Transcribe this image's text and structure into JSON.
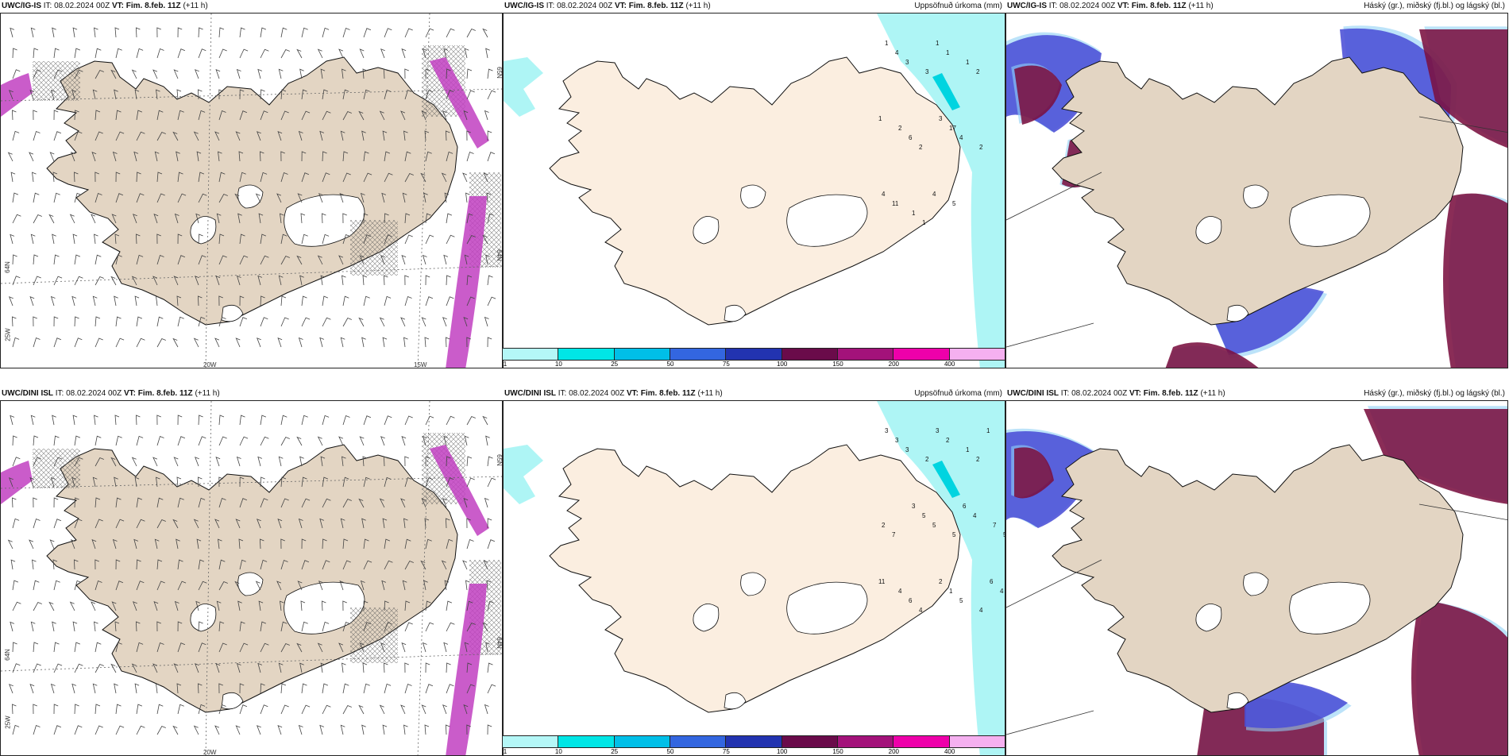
{
  "panels": [
    {
      "model": "UWC/IG-IS",
      "it": "IT: 08.02.2024 00Z",
      "vt_label": "VT:",
      "vt": "Fim. 8.feb. 11Z",
      "lead": "(+11 h)",
      "right_title": ""
    },
    {
      "model": "UWC/IG-IS",
      "it": "IT: 08.02.2024 00Z",
      "vt_label": "VT:",
      "vt": "Fim. 8.feb. 11Z",
      "lead": "(+11 h)",
      "right_title": "Uppsöfnuð úrkoma (mm)"
    },
    {
      "model": "UWC/IG-IS",
      "it": "IT: 08.02.2024 00Z",
      "vt_label": "VT:",
      "vt": "Fim. 8.feb. 11Z",
      "lead": "(+11 h)",
      "right_title": "Háský (gr.), miðský (fj.bl.) og lágský (bl.)"
    },
    {
      "model": "UWC/DINI ISL",
      "it": "IT: 08.02.2024 00Z",
      "vt_label": "VT:",
      "vt": "Fim. 8.feb. 11Z",
      "lead": "(+11 h)",
      "right_title": ""
    },
    {
      "model": "UWC/DINI ISL",
      "it": "IT: 08.02.2024 00Z",
      "vt_label": "VT:",
      "vt": "Fim. 8.feb. 11Z",
      "lead": "(+11 h)",
      "right_title": "Uppsöfnuð úrkoma (mm)"
    },
    {
      "model": "UWC/DINI ISL",
      "it": "IT: 08.02.2024 00Z",
      "vt_label": "VT:",
      "vt": "Fim. 8.feb. 11Z",
      "lead": "(+11 h)",
      "right_title": "Háský (gr.), miðský (fj.bl.) og lágský (bl.)"
    }
  ],
  "axis_labels": {
    "lon_20w": "20W",
    "lon_15w": "15W",
    "lon_25w": "25W",
    "lat_64n": "64N",
    "lat_65n": "65N"
  },
  "colorbar": {
    "labels": [
      "1",
      "10",
      "25",
      "50",
      "75",
      "100",
      "150",
      "200",
      "400"
    ],
    "colors": [
      "#b4f7f7",
      "#00e6e6",
      "#00bfe8",
      "#3366e0",
      "#2233b0",
      "#6a0b4a",
      "#a3127a",
      "#ee00aa",
      "#f5b0f0"
    ]
  },
  "colors": {
    "land": "#e3d5c3",
    "land_precip": "#fbeee0",
    "glacier": "#ffffff",
    "precip_light": "#aef5f5",
    "cloud_high": "#7a1040",
    "cloud_mid": "#4a4fd6",
    "cloud_low": "#8fd0f5",
    "wind_zone": "#c13fc1"
  },
  "precip_numbers_top": [
    "1",
    "4",
    "3",
    "3",
    "1",
    "1",
    "1",
    "2",
    "1",
    "2",
    "6",
    "2",
    "3",
    "17",
    "4",
    "2",
    "4",
    "11",
    "1",
    "1",
    "4",
    "5"
  ],
  "precip_numbers_bottom": [
    "3",
    "3",
    "3",
    "2",
    "3",
    "2",
    "1",
    "2",
    "1",
    "4",
    "2",
    "7",
    "3",
    "5",
    "5",
    "5",
    "6",
    "4",
    "7",
    "5",
    "11",
    "4",
    "6",
    "4",
    "2",
    "1",
    "5",
    "4",
    "6",
    "4"
  ]
}
